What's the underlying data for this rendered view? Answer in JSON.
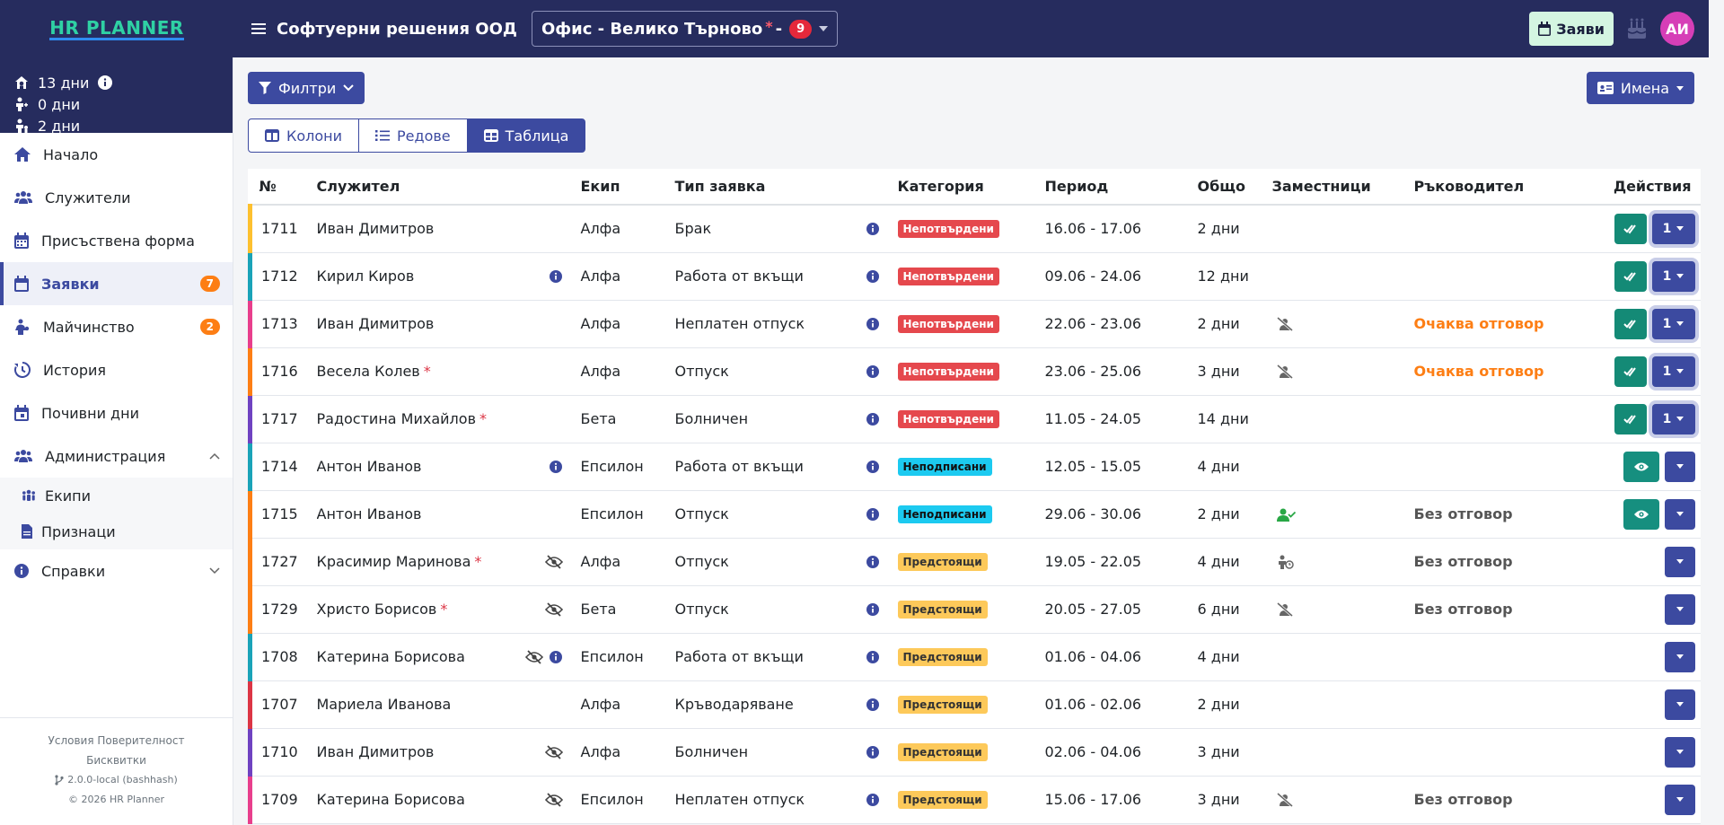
{
  "brand": {
    "name": "HR PLANNER"
  },
  "header": {
    "company": "Софтуерни решения ООД",
    "office": "Офис - Велико Търново",
    "office_star": "*",
    "office_dash": "-",
    "office_count": "9",
    "requests_button": "Заяви",
    "avatar_initials": "АИ"
  },
  "balance": [
    {
      "icon": "vacation-icon",
      "value": "13 дни"
    },
    {
      "icon": "sick-person-icon",
      "value": "0 дни"
    },
    {
      "icon": "maternity-icon",
      "value": "2 дни"
    }
  ],
  "sidebar": {
    "items": [
      {
        "label": "Начало",
        "icon": "home-icon"
      },
      {
        "label": "Служители",
        "icon": "users-icon"
      },
      {
        "label": "Присъствена форма",
        "icon": "calendar-icon"
      },
      {
        "label": "Заявки",
        "icon": "calendar-icon",
        "badge": "7",
        "active": true
      },
      {
        "label": "Майчинство",
        "icon": "mother-icon",
        "badge": "2"
      },
      {
        "label": "История",
        "icon": "history-icon"
      },
      {
        "label": "Почивни дни",
        "icon": "calendar-icon"
      },
      {
        "label": "Администрация",
        "icon": "users-icon",
        "expanded": true
      }
    ],
    "admin_sub": [
      {
        "label": "Екипи",
        "icon": "team-icon"
      },
      {
        "label": "Признаци",
        "icon": "document-icon"
      }
    ],
    "reports": {
      "label": "Справки",
      "icon": "info-icon"
    },
    "footer": {
      "terms": "Условия",
      "privacy": "Поверителност",
      "cookies": "Бисквитки",
      "version": "2.0.0-local (bashhash)",
      "copyright": "© 2026",
      "product": "HR Planner"
    }
  },
  "toolbar": {
    "filters_label": "Филтри",
    "names_label": "Имена",
    "views": [
      "Колони",
      "Редове",
      "Таблица"
    ],
    "active_view": 2
  },
  "table": {
    "headers": [
      "№",
      "Служител",
      "Екип",
      "Тип заявка",
      "Категория",
      "Период",
      "Общо",
      "Заместници",
      "Ръководител",
      "Действия"
    ],
    "rows": [
      {
        "id": "1711",
        "name": "Иван Димитров",
        "star": false,
        "hidden": false,
        "info": false,
        "team": "Алфа",
        "type": "Брак",
        "category": "Непотвърдени",
        "cat": "red",
        "period": "16.06 - 17.06",
        "total": "2 дни",
        "deputy": "",
        "manager": "",
        "mgr": "",
        "actions": "approve",
        "bar": "#fdc02f"
      },
      {
        "id": "1712",
        "name": "Кирил Киров",
        "star": false,
        "hidden": false,
        "info": true,
        "team": "Алфа",
        "type": "Работа от вкъщи",
        "category": "Непотвърдени",
        "cat": "red",
        "period": "09.06 - 24.06",
        "total": "12 дни",
        "deputy": "",
        "manager": "",
        "mgr": "",
        "actions": "approve",
        "bar": "#1aa3b8"
      },
      {
        "id": "1713",
        "name": "Иван Димитров",
        "star": false,
        "hidden": false,
        "info": false,
        "team": "Алфа",
        "type": "Неплатен отпуск",
        "category": "Непотвърдени",
        "cat": "red",
        "period": "22.06 - 23.06",
        "total": "2 дни",
        "deputy": "user-slash-icon",
        "manager": "Очаква отговор",
        "mgr": "orange",
        "actions": "approve",
        "bar": "#e83e8c"
      },
      {
        "id": "1716",
        "name": "Весела Колев",
        "star": true,
        "hidden": false,
        "info": false,
        "team": "Алфа",
        "type": "Отпуск",
        "category": "Непотвърдени",
        "cat": "red",
        "period": "23.06 - 25.06",
        "total": "3 дни",
        "deputy": "user-slash-icon",
        "manager": "Очаква отговор",
        "mgr": "orange",
        "actions": "approve",
        "bar": "#fd7e14"
      },
      {
        "id": "1717",
        "name": "Радостина Михайлов",
        "star": true,
        "hidden": false,
        "info": false,
        "team": "Бета",
        "type": "Болничен",
        "category": "Непотвърдени",
        "cat": "red",
        "period": "11.05 - 24.05",
        "total": "14 дни",
        "deputy": "",
        "manager": "",
        "mgr": "",
        "actions": "approve",
        "bar": "#6f42c1"
      },
      {
        "id": "1714",
        "name": "Антон Иванов",
        "star": false,
        "hidden": false,
        "info": true,
        "team": "Епсилон",
        "type": "Работа от вкъщи",
        "category": "Неподписани",
        "cat": "cyan",
        "period": "12.05 - 15.05",
        "total": "4 дни",
        "deputy": "",
        "manager": "",
        "mgr": "",
        "actions": "view",
        "bar": "#1aa3b8"
      },
      {
        "id": "1715",
        "name": "Антон Иванов",
        "star": false,
        "hidden": false,
        "info": false,
        "team": "Епсилон",
        "type": "Отпуск",
        "category": "Неподписани",
        "cat": "cyan",
        "period": "29.06 - 30.06",
        "total": "2 дни",
        "deputy": "user-check-icon",
        "manager": "Без отговор",
        "mgr": "gray",
        "actions": "view",
        "bar": "#fd7e14"
      },
      {
        "id": "1727",
        "name": "Красимир Маринова",
        "star": true,
        "hidden": true,
        "info": false,
        "team": "Алфа",
        "type": "Отпуск",
        "category": "Предстоящи",
        "cat": "yellow",
        "period": "19.05 - 22.05",
        "total": "4 дни",
        "deputy": "user-clock-icon",
        "manager": "Без отговор",
        "mgr": "gray",
        "actions": "drop",
        "bar": "#fd7e14"
      },
      {
        "id": "1729",
        "name": "Христо Борисов",
        "star": true,
        "hidden": true,
        "info": false,
        "team": "Бета",
        "type": "Отпуск",
        "category": "Предстоящи",
        "cat": "yellow",
        "period": "20.05 - 27.05",
        "total": "6 дни",
        "deputy": "user-slash-icon",
        "manager": "Без отговор",
        "mgr": "gray",
        "actions": "drop",
        "bar": "#fd7e14"
      },
      {
        "id": "1708",
        "name": "Катерина Борисова",
        "star": false,
        "hidden": true,
        "info": true,
        "team": "Епсилон",
        "type": "Работа от вкъщи",
        "category": "Предстоящи",
        "cat": "yellow",
        "period": "01.06 - 04.06",
        "total": "4 дни",
        "deputy": "",
        "manager": "",
        "mgr": "",
        "actions": "drop",
        "bar": "#1aa3b8"
      },
      {
        "id": "1707",
        "name": "Мариела Иванова",
        "star": false,
        "hidden": false,
        "info": false,
        "team": "Алфа",
        "type": "Кръводаряване",
        "category": "Предстоящи",
        "cat": "yellow",
        "period": "01.06 - 02.06",
        "total": "2 дни",
        "deputy": "",
        "manager": "",
        "mgr": "",
        "actions": "drop",
        "bar": "#dc3545"
      },
      {
        "id": "1710",
        "name": "Иван Димитров",
        "star": false,
        "hidden": true,
        "info": false,
        "team": "Алфа",
        "type": "Болничен",
        "category": "Предстоящи",
        "cat": "yellow",
        "period": "02.06 - 04.06",
        "total": "3 дни",
        "deputy": "",
        "manager": "",
        "mgr": "",
        "actions": "drop",
        "bar": "#6f42c1"
      },
      {
        "id": "1709",
        "name": "Катерина Борисова",
        "star": false,
        "hidden": true,
        "info": false,
        "team": "Епсилон",
        "type": "Неплатен отпуск",
        "category": "Предстоящи",
        "cat": "yellow",
        "period": "15.06 - 17.06",
        "total": "3 дни",
        "deputy": "user-slash-icon",
        "manager": "Без отговор",
        "mgr": "gray",
        "actions": "drop",
        "bar": "#e83e8c"
      }
    ]
  }
}
